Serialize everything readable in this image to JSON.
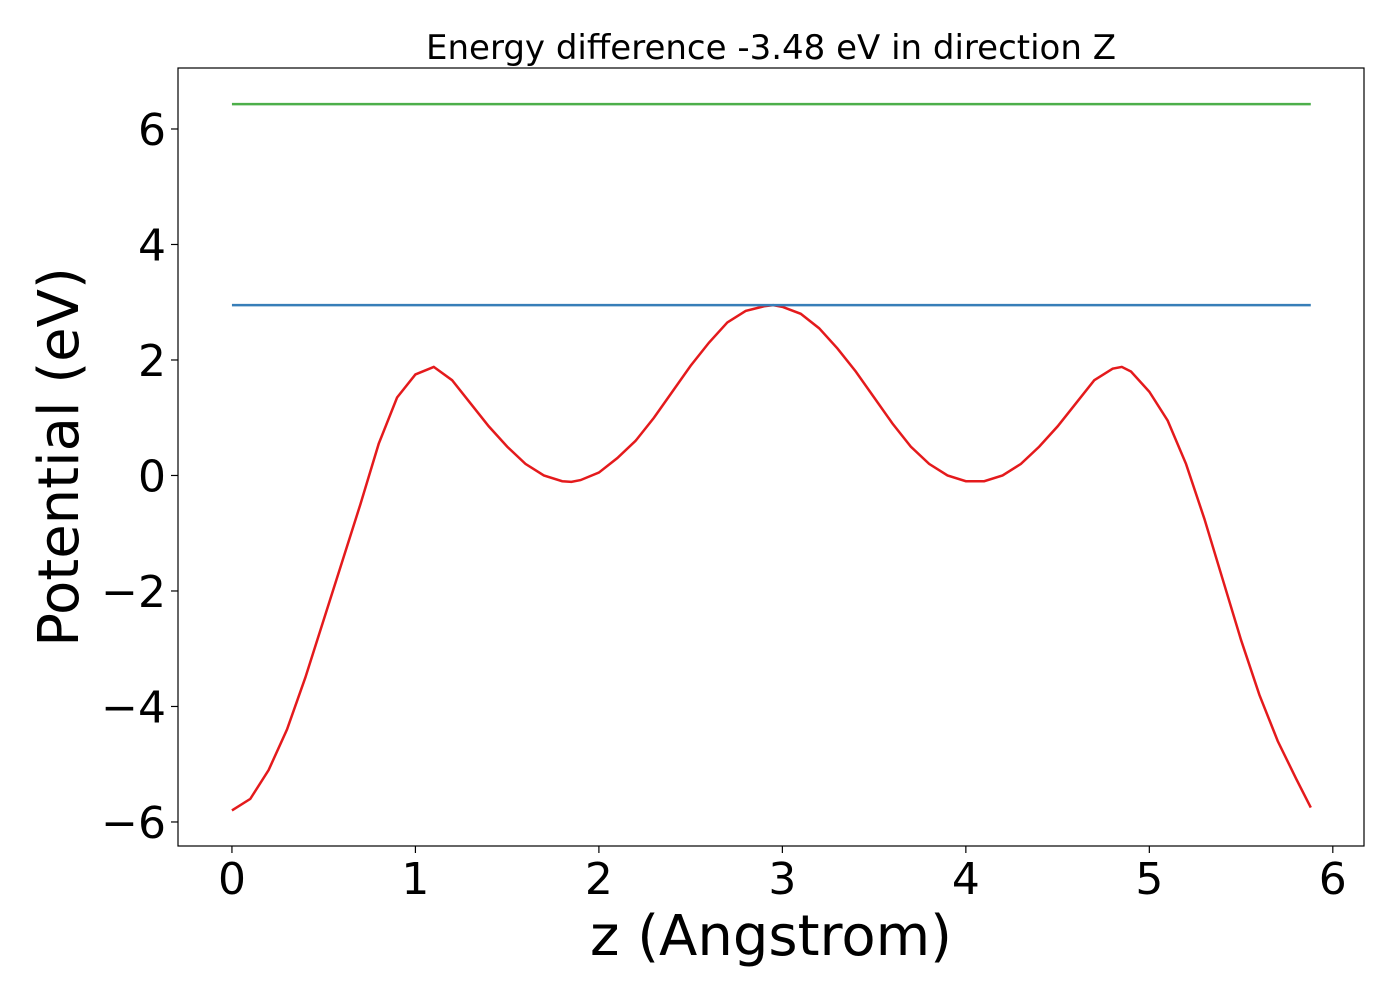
{
  "chart_data": {
    "type": "line",
    "title": "Energy difference -3.48 eV in direction Z",
    "xlabel": "z (Angstrom)",
    "ylabel": "Potential (eV)",
    "xlim": [
      -0.294,
      6.17
    ],
    "ylim": [
      -6.416,
      7.056
    ],
    "xticks": [
      0,
      1,
      2,
      3,
      4,
      5,
      6
    ],
    "yticks": [
      {
        "value": -6,
        "label": "−6"
      },
      {
        "value": -4,
        "label": "−4"
      },
      {
        "value": -2,
        "label": "−2"
      },
      0,
      2,
      4,
      6
    ],
    "grid": false,
    "series": [
      {
        "color": "#e41a1c",
        "x": [
          0,
          0.1,
          0.2,
          0.3,
          0.4,
          0.5,
          0.6,
          0.7,
          0.8,
          0.9,
          1.0,
          1.1,
          1.2,
          1.3,
          1.4,
          1.5,
          1.6,
          1.7,
          1.8,
          1.85,
          1.9,
          2.0,
          2.1,
          2.2,
          2.3,
          2.4,
          2.5,
          2.6,
          2.7,
          2.8,
          2.9,
          2.95,
          3.0,
          3.1,
          3.2,
          3.3,
          3.4,
          3.5,
          3.6,
          3.7,
          3.8,
          3.9,
          4.0,
          4.1,
          4.2,
          4.3,
          4.4,
          4.5,
          4.6,
          4.7,
          4.8,
          4.85,
          4.9,
          5.0,
          5.1,
          5.2,
          5.3,
          5.4,
          5.5,
          5.6,
          5.7,
          5.8,
          5.88
        ],
        "values": [
          -5.8,
          -5.6,
          -5.1,
          -4.4,
          -3.5,
          -2.5,
          -1.5,
          -0.5,
          0.55,
          1.35,
          1.75,
          1.88,
          1.65,
          1.25,
          0.85,
          0.5,
          0.2,
          0.0,
          -0.1,
          -0.11,
          -0.08,
          0.05,
          0.3,
          0.6,
          1.0,
          1.45,
          1.9,
          2.3,
          2.65,
          2.85,
          2.93,
          2.95,
          2.92,
          2.8,
          2.55,
          2.2,
          1.8,
          1.35,
          0.9,
          0.5,
          0.2,
          0.0,
          -0.1,
          -0.1,
          0.0,
          0.2,
          0.5,
          0.85,
          1.25,
          1.65,
          1.85,
          1.88,
          1.8,
          1.45,
          0.95,
          0.2,
          -0.75,
          -1.8,
          -2.85,
          -3.8,
          -4.6,
          -5.25,
          -5.75
        ]
      },
      {
        "color": "#377eb8",
        "x": [
          0,
          5.88
        ],
        "values": [
          2.95,
          2.95
        ]
      },
      {
        "color": "#4daf4a",
        "x": [
          0,
          5.88
        ],
        "values": [
          6.43,
          6.43
        ]
      }
    ]
  }
}
